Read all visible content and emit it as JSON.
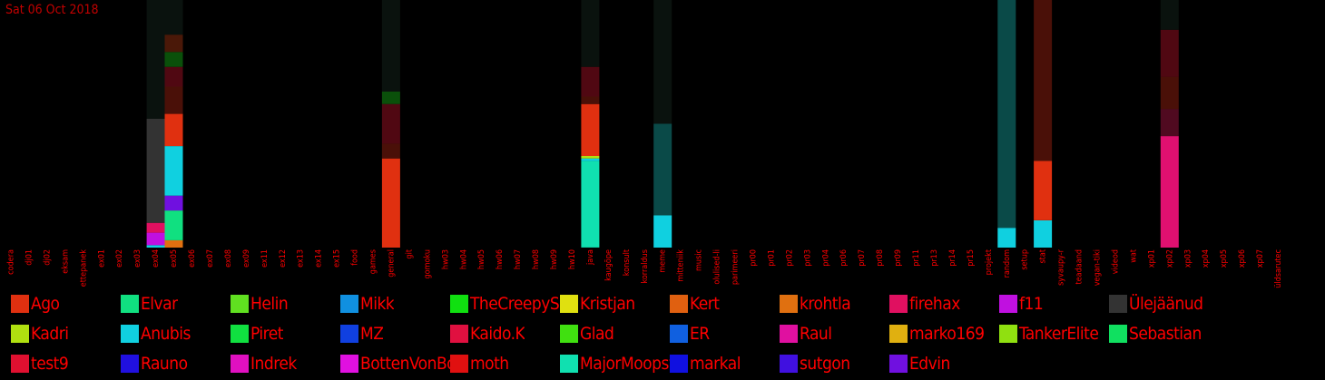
{
  "date_label": "Sat 06 Oct 2018",
  "chart_data": {
    "type": "bar",
    "stacked": true,
    "grid": false,
    "legend_position": "bottom",
    "ylim": [
      0,
      100
    ],
    "categories": [
      "codera",
      "dj01",
      "dj02",
      "eksam",
      "ettepanek",
      "ex01",
      "ex02",
      "ex03",
      "ex04",
      "ex05",
      "ex06",
      "ex07",
      "ex08",
      "ex09",
      "ex11",
      "ex12",
      "ex13",
      "ex14",
      "ex15",
      "food",
      "games",
      "general",
      "git",
      "gomoku",
      "hw03",
      "hw04",
      "hw05",
      "hw06",
      "hw07",
      "hw08",
      "hw09",
      "hw10",
      "java",
      "kaugõpe",
      "konsult",
      "korraldus",
      "meme",
      "mitteniik",
      "music",
      "olulised-li",
      "parimeeri",
      "pr00",
      "pr01",
      "pr02",
      "pr03",
      "pr04",
      "pr06",
      "pr07",
      "pr08",
      "pr09",
      "pr11",
      "pr13",
      "pr14",
      "pr15",
      "projekt",
      "random",
      "setup",
      "stat",
      "syvaupy-r",
      "teadaand",
      "vegan-tiki",
      "videod",
      "wat",
      "xp01",
      "xp02",
      "xp03",
      "xp04",
      "xp05",
      "xp06",
      "xp07",
      "üldsarutec"
    ],
    "series": [
      {
        "name": "Ago",
        "color": "#e03010"
      },
      {
        "name": "Elvar",
        "color": "#10e080"
      },
      {
        "name": "Helin",
        "color": "#60e020"
      },
      {
        "name": "Mikk",
        "color": "#1090e0"
      },
      {
        "name": "TheCreepySheep",
        "color": "#10e010"
      },
      {
        "name": "Kristjan",
        "color": "#e0e010"
      },
      {
        "name": "Kert",
        "color": "#e06010"
      },
      {
        "name": "krohtla",
        "color": "#e07010"
      },
      {
        "name": "firehax",
        "color": "#e01060"
      },
      {
        "name": "f11",
        "color": "#c010e0"
      },
      {
        "name": "Ülejäänud",
        "color": "#333333"
      },
      {
        "name": "Kadri",
        "color": "#b0e010"
      },
      {
        "name": "Anubis",
        "color": "#10d0e0"
      },
      {
        "name": "Piret",
        "color": "#10e040"
      },
      {
        "name": "MZ",
        "color": "#1040e0"
      },
      {
        "name": "Kaido.K",
        "color": "#e01040"
      },
      {
        "name": "Glad",
        "color": "#40e010"
      },
      {
        "name": "ER",
        "color": "#1060e0"
      },
      {
        "name": "Raul",
        "color": "#e010a0"
      },
      {
        "name": "marko169",
        "color": "#e0b010"
      },
      {
        "name": "TankerElite",
        "color": "#90e010"
      },
      {
        "name": "Sebastian",
        "color": "#10e060"
      },
      {
        "name": "test9",
        "color": "#e01030"
      },
      {
        "name": "Rauno",
        "color": "#2010e0"
      },
      {
        "name": "Indrek",
        "color": "#e010c0"
      },
      {
        "name": "BottenVonBot",
        "color": "#e010e0"
      },
      {
        "name": "moth",
        "color": "#e01010"
      },
      {
        "name": "MajorMoopsy",
        "color": "#10e0b0"
      },
      {
        "name": "markal",
        "color": "#1010e0"
      },
      {
        "name": "sutgon",
        "color": "#4010e0"
      },
      {
        "name": "Edvin",
        "color": "#7010e0"
      }
    ],
    "stacks": [
      {
        "category": "ex04",
        "segments": [
          {
            "value": 1,
            "color": "#10d0e0"
          },
          {
            "value": 5,
            "color": "#c010e0"
          },
          {
            "value": 4,
            "color": "#e01060"
          },
          {
            "value": 42,
            "color": "#333333"
          },
          {
            "value": 48,
            "color": "#0a120e"
          }
        ]
      },
      {
        "category": "ex05",
        "segments": [
          {
            "value": 3,
            "color": "#e07010"
          },
          {
            "value": 12,
            "color": "#10e080"
          },
          {
            "value": 6,
            "color": "#7010e0"
          },
          {
            "value": 20,
            "color": "#10d0e0"
          },
          {
            "value": 13,
            "color": "#e03010"
          },
          {
            "value": 11,
            "color": "#4a1008"
          },
          {
            "value": 8,
            "color": "#500812"
          },
          {
            "value": 6,
            "color": "#0a500a"
          },
          {
            "value": 7,
            "color": "#4a1808"
          },
          {
            "value": 14,
            "color": "#0a120e"
          }
        ]
      },
      {
        "category": "general",
        "segments": [
          {
            "value": 36,
            "color": "#e03010"
          },
          {
            "value": 6,
            "color": "#4a1008"
          },
          {
            "value": 16,
            "color": "#500812"
          },
          {
            "value": 5,
            "color": "#0a500a"
          },
          {
            "value": 37,
            "color": "#0a120e"
          }
        ]
      },
      {
        "category": "java",
        "segments": [
          {
            "value": 35,
            "color": "#10e0b0"
          },
          {
            "value": 1,
            "color": "#10d0e0"
          },
          {
            "value": 1,
            "color": "#b0e010"
          },
          {
            "value": 21,
            "color": "#e03010"
          },
          {
            "value": 3,
            "color": "#4a1008"
          },
          {
            "value": 12,
            "color": "#500812"
          },
          {
            "value": 27,
            "color": "#0a120e"
          }
        ]
      },
      {
        "category": "meme",
        "segments": [
          {
            "value": 13,
            "color": "#10d0e0"
          },
          {
            "value": 37,
            "color": "#0a4a48"
          },
          {
            "value": 50,
            "color": "#0a120e"
          }
        ]
      },
      {
        "category": "random",
        "segments": [
          {
            "value": 8,
            "color": "#10d0e0"
          },
          {
            "value": 92,
            "color": "#0a4a48"
          }
        ]
      },
      {
        "category": "stat",
        "segments": [
          {
            "value": 11,
            "color": "#10d0e0"
          },
          {
            "value": 24,
            "color": "#e03010"
          },
          {
            "value": 65,
            "color": "#4a1008"
          }
        ]
      },
      {
        "category": "xp02",
        "segments": [
          {
            "value": 45,
            "color": "#e01070"
          },
          {
            "value": 11,
            "color": "#500a20"
          },
          {
            "value": 13,
            "color": "#4a1008"
          },
          {
            "value": 19,
            "color": "#500812"
          },
          {
            "value": 12,
            "color": "#0a120e"
          }
        ]
      }
    ]
  }
}
